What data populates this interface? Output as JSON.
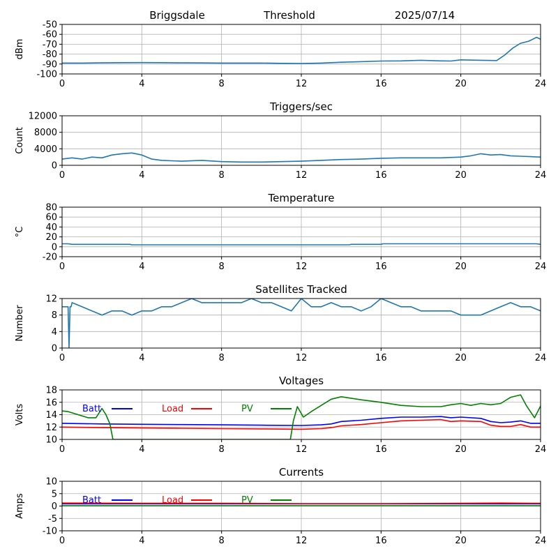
{
  "header": {
    "station": "Briggsdale",
    "mode": "Threshold",
    "date": "2025/07/14"
  },
  "colors": {
    "series": "#1f77b4",
    "batt": "#0000ff",
    "load": "#ff0000",
    "pv": "#008000",
    "grid": "#b0b0b0"
  },
  "chart_data": [
    {
      "type": "line",
      "title": "",
      "ylabel": "dBm",
      "xlim": [
        0,
        24
      ],
      "ylim": [
        -100,
        -50
      ],
      "xticks": [
        0,
        4,
        8,
        12,
        16,
        20,
        24
      ],
      "yticks": [
        -100,
        -90,
        -80,
        -70,
        -60,
        -50
      ],
      "grid": true,
      "series": [
        {
          "x": [
            0,
            1,
            2,
            3,
            4,
            5,
            6,
            7,
            8,
            9,
            10,
            11,
            12,
            13,
            14,
            15,
            16,
            17,
            18,
            19,
            19.5,
            20,
            21,
            21.8,
            22.2,
            22.6,
            23,
            23.4,
            23.8,
            24
          ],
          "y": [
            -89,
            -89,
            -88.8,
            -88.6,
            -88.5,
            -88.6,
            -88.8,
            -88.9,
            -89,
            -89,
            -89,
            -89.3,
            -89.5,
            -89,
            -88.2,
            -87.6,
            -87,
            -86.8,
            -86.2,
            -86.8,
            -87,
            -85.8,
            -86.2,
            -86.5,
            -81,
            -74,
            -69,
            -67,
            -63,
            -65
          ]
        }
      ]
    },
    {
      "type": "line",
      "title": "Triggers/sec",
      "ylabel": "Count",
      "xlim": [
        0,
        24
      ],
      "ylim": [
        0,
        12000
      ],
      "xticks": [
        0,
        4,
        8,
        12,
        16,
        20,
        24
      ],
      "yticks": [
        0,
        4000,
        8000,
        12000
      ],
      "grid": true,
      "series": [
        {
          "x": [
            0,
            0.5,
            1,
            1.5,
            2,
            2.5,
            3,
            3.5,
            4,
            4.5,
            5,
            6,
            7,
            8,
            9,
            10,
            11,
            12,
            13,
            14,
            15,
            16,
            17,
            18,
            19,
            20,
            20.5,
            21,
            21.5,
            22,
            22.5,
            23,
            23.5,
            24
          ],
          "y": [
            1500,
            1800,
            1500,
            2000,
            1800,
            2500,
            2800,
            3000,
            2500,
            1500,
            1200,
            1000,
            1200,
            900,
            800,
            800,
            900,
            1000,
            1200,
            1400,
            1500,
            1700,
            1800,
            1800,
            1800,
            2000,
            2300,
            2800,
            2500,
            2600,
            2300,
            2200,
            2100,
            2000
          ]
        }
      ]
    },
    {
      "type": "line",
      "title": "Temperature",
      "ylabel": "°C",
      "xlim": [
        0,
        24
      ],
      "ylim": [
        -20,
        80
      ],
      "xticks": [
        0,
        4,
        8,
        12,
        16,
        20,
        24
      ],
      "yticks": [
        -20,
        0,
        20,
        40,
        60,
        80
      ],
      "grid": true,
      "series": [
        {
          "x": [
            0,
            0.3,
            0.5,
            3.4,
            3.5,
            14.4,
            14.5,
            16,
            16.1,
            23.8,
            24
          ],
          "y": [
            6,
            6,
            5,
            5,
            4,
            4,
            5,
            5,
            6,
            6,
            5
          ]
        }
      ]
    },
    {
      "type": "line",
      "title": "Satellites Tracked",
      "ylabel": "Number",
      "xlim": [
        0,
        24
      ],
      "ylim": [
        0,
        12
      ],
      "xticks": [
        0,
        4,
        8,
        12,
        16,
        20,
        24
      ],
      "yticks": [
        0,
        4,
        8,
        12
      ],
      "grid": true,
      "series": [
        {
          "x": [
            0,
            0.3,
            0.35,
            0.4,
            0.45,
            0.5,
            1,
            1.5,
            2,
            2.5,
            3,
            3.5,
            4,
            4.5,
            5,
            5.5,
            6,
            6.5,
            7,
            7.5,
            8,
            8.5,
            9,
            9.5,
            10,
            10.5,
            11,
            11.5,
            12,
            12.5,
            13,
            13.5,
            14,
            14.5,
            15,
            15.5,
            16,
            16.5,
            17,
            17.5,
            18,
            18.5,
            19,
            19.5,
            20,
            20.5,
            21,
            21.5,
            22,
            22.5,
            23,
            23.5,
            24
          ],
          "y": [
            10,
            10,
            0,
            10,
            10,
            11,
            10,
            9,
            8,
            9,
            9,
            8,
            9,
            9,
            10,
            10,
            11,
            12,
            11,
            11,
            11,
            11,
            11,
            12,
            11,
            11,
            10,
            9,
            12,
            10,
            10,
            11,
            10,
            10,
            9,
            10,
            12,
            11,
            10,
            10,
            9,
            9,
            9,
            9,
            8,
            8,
            8,
            9,
            10,
            11,
            10,
            10,
            9
          ]
        }
      ]
    },
    {
      "type": "line",
      "title": "Voltages",
      "ylabel": "Volts",
      "xlim": [
        0,
        24
      ],
      "ylim": [
        10,
        18
      ],
      "xticks": [
        0,
        4,
        8,
        12,
        16,
        20,
        24
      ],
      "yticks": [
        10,
        12,
        14,
        16,
        18
      ],
      "grid": true,
      "legend": "top-left",
      "series": [
        {
          "name": "Batt",
          "x": [
            0,
            2,
            4,
            6,
            8,
            10,
            12,
            13,
            13.5,
            14,
            15,
            16,
            17,
            18,
            19,
            19.5,
            20,
            21,
            21.5,
            22,
            22.5,
            23,
            23.5,
            24
          ],
          "y": [
            12.6,
            12.5,
            12.45,
            12.4,
            12.35,
            12.3,
            12.25,
            12.35,
            12.5,
            12.9,
            13.1,
            13.4,
            13.6,
            13.6,
            13.7,
            13.5,
            13.6,
            13.4,
            12.9,
            12.7,
            12.8,
            13,
            12.6,
            12.6
          ]
        },
        {
          "name": "Load",
          "x": [
            0,
            2,
            4,
            6,
            8,
            10,
            12,
            13,
            13.5,
            14,
            15,
            16,
            17,
            18,
            19,
            19.5,
            20,
            21,
            21.5,
            22,
            22.5,
            23,
            23.5,
            24
          ],
          "y": [
            12,
            11.9,
            11.85,
            11.8,
            11.75,
            11.7,
            11.65,
            11.75,
            11.9,
            12.2,
            12.4,
            12.7,
            13,
            13.1,
            13.2,
            12.9,
            13,
            12.9,
            12.3,
            12.1,
            12.1,
            12.4,
            12,
            12
          ]
        },
        {
          "name": "PV",
          "x": [
            0,
            0.3,
            0.8,
            1.3,
            1.7,
            2,
            2.2,
            2.4,
            2.55,
            11.45,
            11.6,
            11.8,
            12.1,
            12.5,
            13,
            13.5,
            14,
            15,
            16,
            17,
            18,
            19,
            19.5,
            20,
            20.5,
            21,
            21.5,
            22,
            22.5,
            23,
            23.3,
            23.7,
            24
          ],
          "y": [
            14.6,
            14.5,
            14,
            13.5,
            13.5,
            15,
            14,
            12.5,
            10,
            10,
            13,
            15.3,
            13.6,
            14.5,
            15.5,
            16.5,
            16.9,
            16.4,
            16,
            15.5,
            15.3,
            15.3,
            15.6,
            15.8,
            15.5,
            15.8,
            15.6,
            15.8,
            16.8,
            17.2,
            15.4,
            13.5,
            15.4
          ]
        }
      ]
    },
    {
      "type": "line",
      "title": "Currents",
      "ylabel": "Amps",
      "xlim": [
        0,
        24
      ],
      "ylim": [
        -10,
        10
      ],
      "xticks": [
        0,
        4,
        8,
        12,
        16,
        20,
        24
      ],
      "yticks": [
        -10,
        -5,
        0,
        5,
        10
      ],
      "grid": true,
      "legend": "top-left",
      "series": [
        {
          "name": "Batt",
          "x": [
            0,
            6,
            12,
            18,
            24
          ],
          "y": [
            0.9,
            0.9,
            0.9,
            0.9,
            0.9
          ]
        },
        {
          "name": "Load",
          "x": [
            0,
            4,
            8,
            12,
            16,
            20,
            22,
            24
          ],
          "y": [
            1.2,
            1.1,
            1.1,
            1.0,
            1.0,
            1.1,
            1.2,
            1.1
          ]
        },
        {
          "name": "PV",
          "x": [
            0,
            6,
            12,
            18,
            24
          ],
          "y": [
            0.1,
            0.1,
            0.1,
            0.1,
            0.1
          ]
        }
      ]
    }
  ]
}
